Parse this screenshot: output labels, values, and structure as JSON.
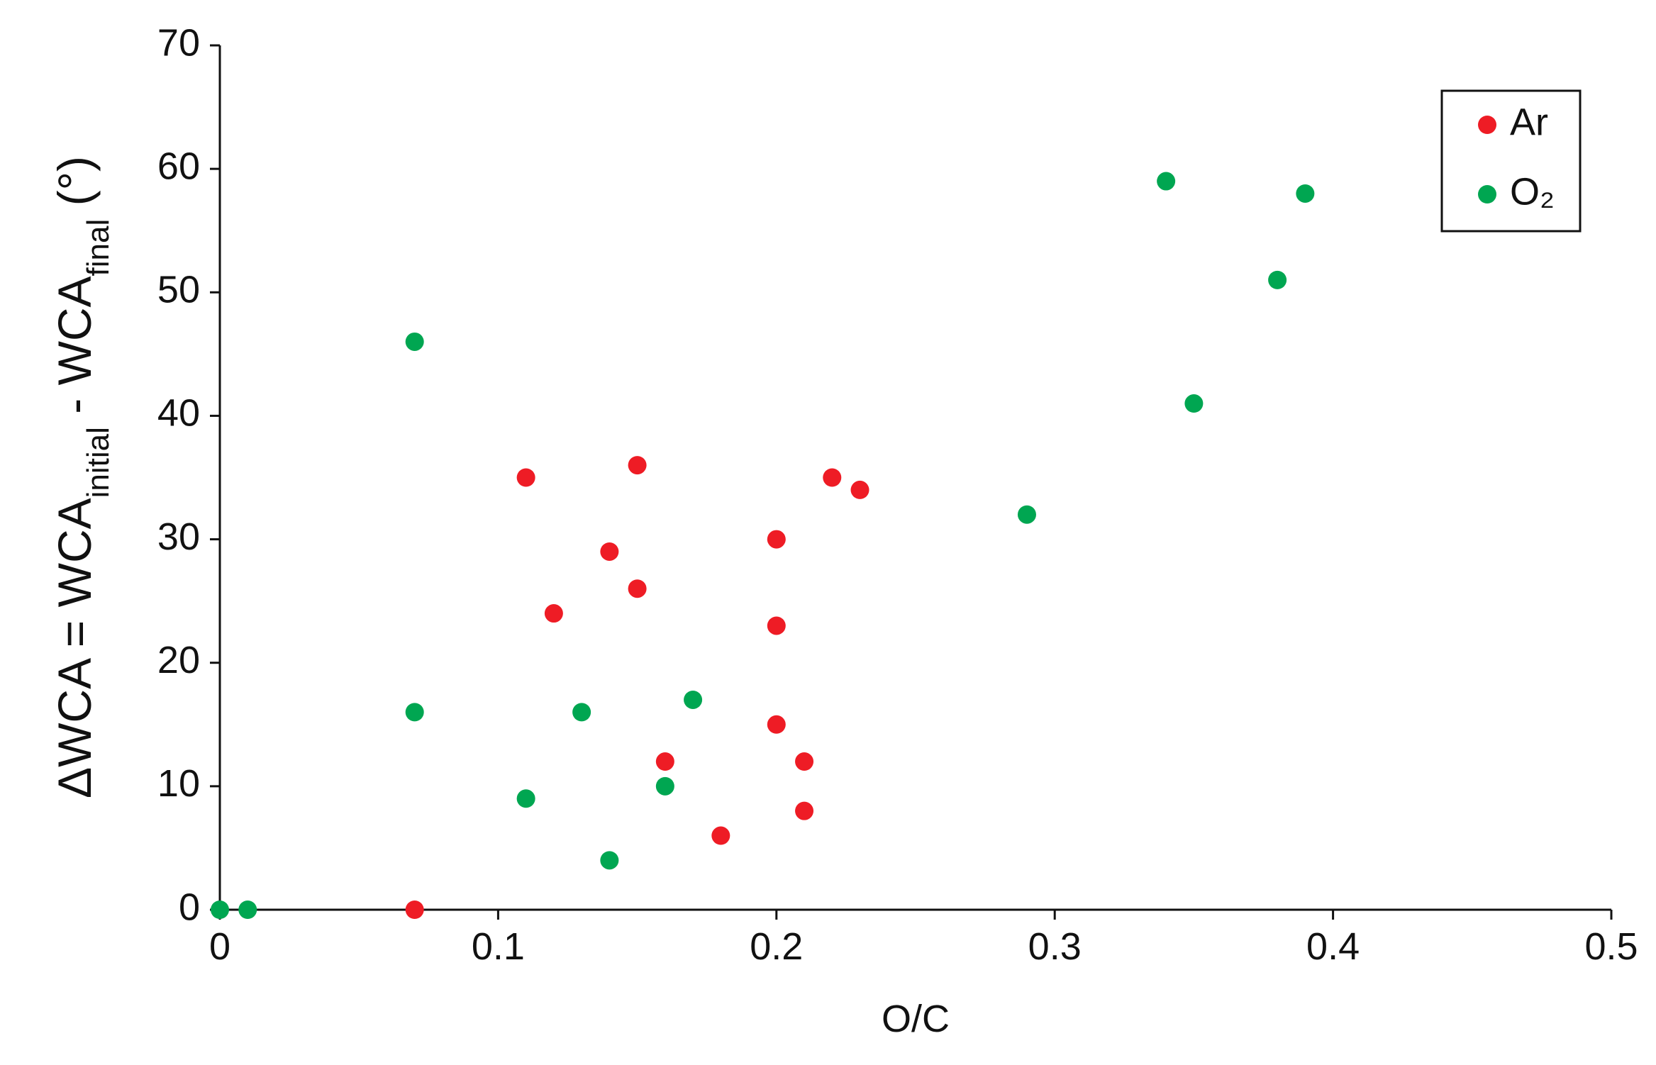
{
  "chart_data": {
    "type": "scatter",
    "xlabel": "O/C",
    "ylabel": [
      "ΔWCA = WCA",
      "initial",
      " - WCA",
      "final",
      " (°)"
    ],
    "xlim": [
      0,
      0.5
    ],
    "xticks": [
      0,
      0.1,
      0.2,
      0.3,
      0.4,
      0.5
    ],
    "ylim": [
      0,
      70
    ],
    "yticks": [
      0,
      10,
      20,
      30,
      40,
      50,
      60,
      70
    ],
    "legend": "top-right",
    "series": [
      {
        "name": "Ar",
        "color": "#ee1c25",
        "x": [
          0.07,
          0.11,
          0.15,
          0.14,
          0.15,
          0.12,
          0.22,
          0.23,
          0.2,
          0.2,
          0.2,
          0.16,
          0.21,
          0.21,
          0.18
        ],
        "y": [
          0,
          35,
          36,
          29,
          26,
          24,
          35,
          34,
          30,
          23,
          15,
          12,
          12,
          8,
          6
        ]
      },
      {
        "name": "O₂",
        "color": "#00a651",
        "x": [
          0,
          0.01,
          0.07,
          0.07,
          0.11,
          0.13,
          0.14,
          0.16,
          0.17,
          0.29,
          0.34,
          0.35,
          0.38,
          0.39
        ],
        "y": [
          0,
          0,
          46,
          16,
          9,
          16,
          4,
          10,
          17,
          32,
          59,
          41,
          51,
          58
        ]
      }
    ]
  }
}
